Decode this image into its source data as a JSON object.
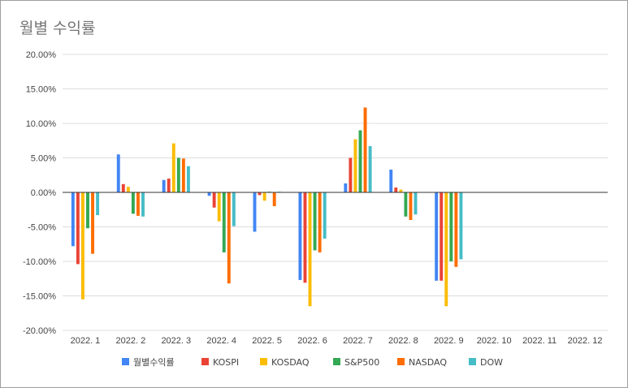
{
  "chart_data": {
    "type": "bar",
    "title": "월별 수익률",
    "xlabel": "",
    "ylabel": "",
    "ylim": [
      -20,
      20
    ],
    "yticks": [
      20,
      15,
      10,
      5,
      0,
      -5,
      -10,
      -15,
      -20
    ],
    "ytick_labels": [
      "20.00%",
      "15.00%",
      "10.00%",
      "5.00%",
      "0.00%",
      "-5.00%",
      "-10.00%",
      "-15.00%",
      "-20.00%"
    ],
    "categories": [
      "2022. 1",
      "2022. 2",
      "2022. 3",
      "2022. 4",
      "2022. 5",
      "2022. 6",
      "2022. 7",
      "2022. 8",
      "2022. 9",
      "2022. 10",
      "2022. 11",
      "2022. 12"
    ],
    "grid": true,
    "legend_position": "bottom",
    "series": [
      {
        "name": "월별수익률",
        "color": "#4285f4",
        "values": [
          -7.8,
          5.5,
          1.8,
          -0.5,
          -5.7,
          -12.7,
          1.3,
          3.3,
          -12.8,
          null,
          null,
          null
        ]
      },
      {
        "name": "KOSPI",
        "color": "#ea4335",
        "values": [
          -10.4,
          1.2,
          2.0,
          -2.2,
          -0.4,
          -13.1,
          5.0,
          0.7,
          -12.8,
          null,
          null,
          null
        ]
      },
      {
        "name": "KOSDAQ",
        "color": "#fbbc04",
        "values": [
          -15.5,
          0.8,
          7.1,
          -4.2,
          -1.2,
          -16.5,
          7.7,
          0.4,
          -16.5,
          null,
          null,
          null
        ]
      },
      {
        "name": "S&P500",
        "color": "#34a853",
        "values": [
          -5.2,
          -3.1,
          5.0,
          -8.7,
          0.1,
          -8.4,
          9.0,
          -3.5,
          -10.0,
          null,
          null,
          null
        ]
      },
      {
        "name": "NASDAQ",
        "color": "#ff6d01",
        "values": [
          -8.9,
          -3.4,
          4.9,
          -13.2,
          -2.0,
          -8.7,
          12.3,
          -4.0,
          -10.8,
          null,
          null,
          null
        ]
      },
      {
        "name": "DOW",
        "color": "#46bdc6",
        "values": [
          -3.3,
          -3.5,
          3.8,
          -4.9,
          0.1,
          -6.7,
          6.7,
          -3.2,
          -9.7,
          null,
          null,
          null
        ]
      }
    ]
  }
}
